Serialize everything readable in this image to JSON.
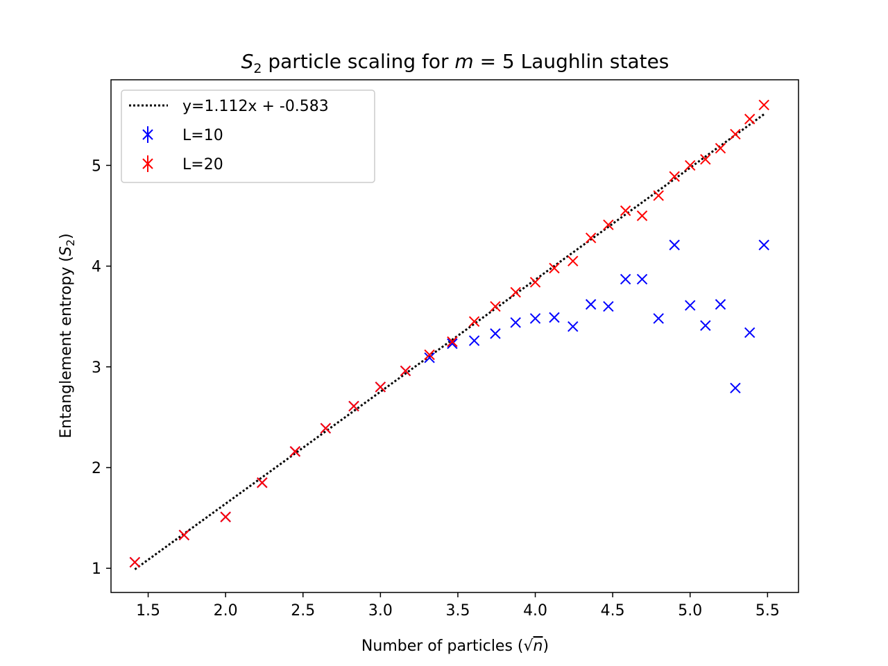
{
  "chart_data": {
    "type": "scatter",
    "title_parts": {
      "math_s": "S",
      "math_s_sub": "2",
      "mid": " particle scaling for ",
      "math_m": "m",
      "eq": " = 5",
      "end": " Laughlin states"
    },
    "xlabel_parts": {
      "text": "Number of particles (",
      "sqrt": "√",
      "var": "n",
      "close": ")"
    },
    "ylabel_parts": {
      "text": "Entanglement entropy (",
      "var": "S",
      "sub": "2",
      "close": ")"
    },
    "xlim": [
      1.26,
      5.7
    ],
    "ylim": [
      0.76,
      5.85
    ],
    "xticks": [
      1.5,
      2.0,
      2.5,
      3.0,
      3.5,
      4.0,
      4.5,
      5.0,
      5.5
    ],
    "xtick_labels": [
      "1.5",
      "2.0",
      "2.5",
      "3.0",
      "3.5",
      "4.0",
      "4.5",
      "5.0",
      "5.5"
    ],
    "yticks": [
      1,
      2,
      3,
      4,
      5
    ],
    "ytick_labels": [
      "1",
      "2",
      "3",
      "4",
      "5"
    ],
    "grid": false,
    "legend_position": "top-left",
    "fit": {
      "label": "y=1.112x + -0.583",
      "slope": 1.112,
      "intercept": -0.583,
      "x_range": [
        1.414,
        5.477
      ],
      "color": "#000000"
    },
    "series": [
      {
        "name": "L=10",
        "color": "#0000ff",
        "x": [
          1.414,
          1.732,
          2.0,
          2.236,
          2.449,
          2.646,
          2.828,
          3.0,
          3.162,
          3.317,
          3.464,
          3.606,
          3.742,
          3.873,
          4.0,
          4.123,
          4.243,
          4.359,
          4.472,
          4.583,
          4.69,
          4.796,
          4.899,
          5.0,
          5.099,
          5.196,
          5.292,
          5.385,
          5.477
        ],
        "y": [
          1.06,
          1.33,
          1.51,
          1.85,
          2.16,
          2.39,
          2.61,
          2.8,
          2.96,
          3.09,
          3.23,
          3.26,
          3.33,
          3.44,
          3.48,
          3.49,
          3.4,
          3.62,
          3.6,
          3.87,
          3.87,
          3.48,
          4.21,
          3.61,
          3.41,
          3.62,
          2.79,
          3.34,
          4.21
        ]
      },
      {
        "name": "L=20",
        "color": "#ff0000",
        "x": [
          1.414,
          1.732,
          2.0,
          2.236,
          2.449,
          2.646,
          2.828,
          3.0,
          3.162,
          3.317,
          3.464,
          3.606,
          3.742,
          3.873,
          4.0,
          4.123,
          4.243,
          4.359,
          4.472,
          4.583,
          4.69,
          4.796,
          4.899,
          5.0,
          5.099,
          5.196,
          5.292,
          5.385,
          5.477
        ],
        "y": [
          1.06,
          1.33,
          1.51,
          1.85,
          2.16,
          2.39,
          2.61,
          2.8,
          2.96,
          3.12,
          3.25,
          3.45,
          3.6,
          3.74,
          3.84,
          3.98,
          4.05,
          4.28,
          4.41,
          4.55,
          4.5,
          4.7,
          4.89,
          5.0,
          5.06,
          5.17,
          5.31,
          5.46,
          5.6
        ]
      }
    ]
  }
}
